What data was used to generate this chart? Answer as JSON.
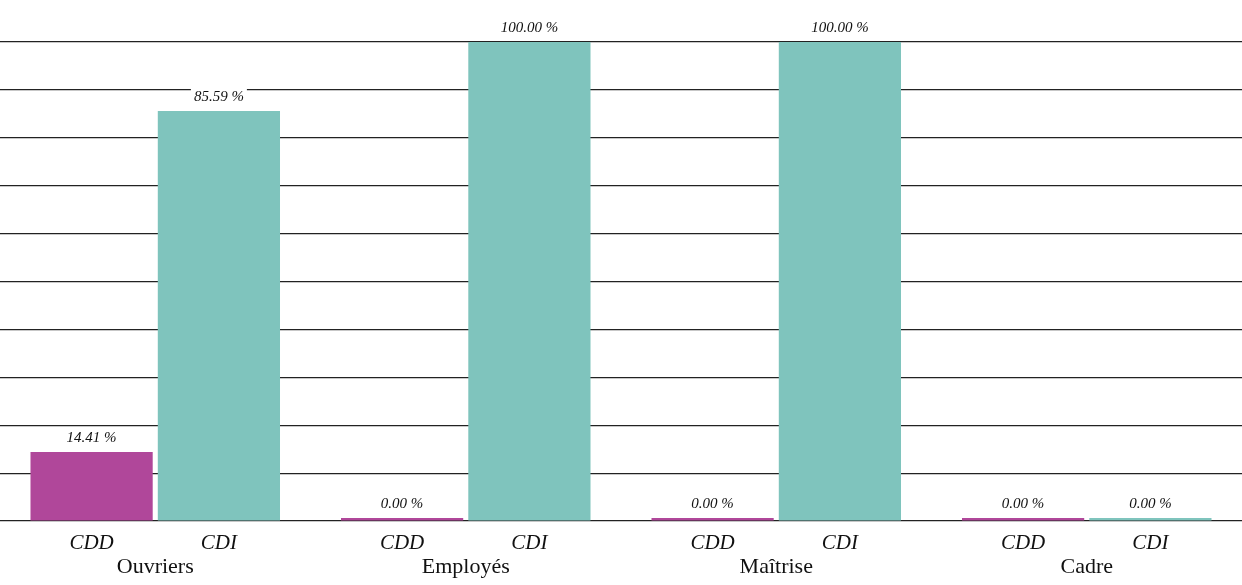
{
  "chart_data": {
    "type": "bar",
    "categories": [
      "Ouvriers",
      "Employés",
      "Maîtrise",
      "Cadre"
    ],
    "series": [
      {
        "name": "CDD",
        "color": "#b0479a",
        "values": [
          14.41,
          0,
          0,
          0
        ],
        "value_labels": [
          "14.41 %",
          "0.00 %",
          "0.00 %",
          "0.00 %"
        ]
      },
      {
        "name": "CDI",
        "color": "#7fc4bd",
        "values": [
          85.59,
          100,
          100,
          0
        ],
        "value_labels": [
          "85.59 %",
          "100.00 %",
          "100.00 %",
          "0.00 %"
        ]
      }
    ],
    "ylim": [
      0,
      100
    ],
    "grid": "y",
    "legend": false
  }
}
